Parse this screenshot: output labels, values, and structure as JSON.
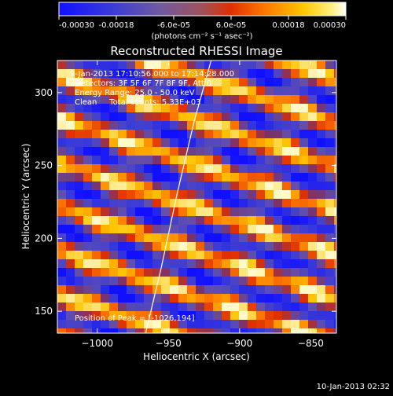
{
  "colorbar": {
    "ticks": [
      "-0.00030",
      "-0.00018",
      "-6.0e-05",
      "6.0e-05",
      "0.00018",
      "0.00030"
    ],
    "units_label": "(photons cm⁻² s⁻¹ asec⁻²)",
    "min": -0.0003,
    "max": 0.0003
  },
  "chart_data": {
    "type": "heatmap",
    "title": "Reconstructed RHESSI Image",
    "xlabel": "Heliocentric X (arcsec)",
    "ylabel": "Heliocentric Y (arcsec)",
    "xlim": [
      -1028,
      -832
    ],
    "ylim": [
      135,
      322
    ],
    "x_ticks": [
      -1000,
      -950,
      -900,
      -850
    ],
    "y_ticks": [
      150,
      200,
      250,
      300
    ],
    "x_tick_labels": [
      "−1000",
      "−950",
      "−900",
      "−850"
    ],
    "y_tick_labels": [
      "150",
      "200",
      "250",
      "300"
    ],
    "annotations": {
      "time_range": "9-Jan-2013 17:10:56.000 to 17:14:28.000",
      "detectors": "Detectors: 3F 5F 6F 7F 8F 9F, Att 0",
      "energy": "Energy Range: 25.0 - 50.0 keV",
      "clean": "Clean     Total counts: 5.33E+03",
      "peak": "Position of Peak = [-1026,194]"
    },
    "peak_position": [
      -1026,
      194
    ],
    "limb_curve": [
      [
        -966,
        135
      ],
      [
        -955,
        180
      ],
      [
        -944,
        230
      ],
      [
        -932,
        280
      ],
      [
        -920,
        322
      ]
    ]
  },
  "footer": {
    "timestamp": "10-Jan-2013 02:32"
  }
}
